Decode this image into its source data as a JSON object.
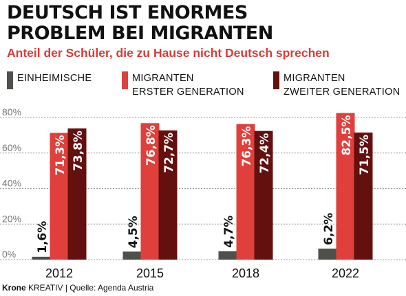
{
  "title_line1": "DEUTSCH IST ENORMES",
  "title_line2": "PROBLEM BEI MIGRANTEN",
  "subtitle": "Anteil der Schüler, die zu Hause nicht Deutsch sprechen",
  "legend": [
    {
      "line1": "EINHEIMISCHE",
      "line2": ""
    },
    {
      "line1": "MIGRANTEN",
      "line2": "ERSTER GENERATION"
    },
    {
      "line1": "MIGRANTEN",
      "line2": "ZWEITER GENERATION"
    }
  ],
  "colors": {
    "einheimische": "#4f4f4b",
    "erste": "#e0403b",
    "zweite": "#64100f",
    "grid": "#9a9a9a"
  },
  "footer": {
    "brand": "Krone",
    "brand_suffix": "KREATIV",
    "source": " | Quelle: Agenda Austria"
  },
  "chart_data": {
    "type": "bar",
    "categories": [
      "2012",
      "2015",
      "2018",
      "2022"
    ],
    "ylim": [
      0,
      80
    ],
    "yticks": [
      0,
      20,
      40,
      60,
      80
    ],
    "ytick_labels": [
      "0%",
      "20%",
      "40%",
      "60%",
      "80%"
    ],
    "grid": true,
    "series": [
      {
        "name": "EINHEIMISCHE",
        "values": [
          1.6,
          4.5,
          4.7,
          6.2
        ],
        "labels": [
          "1,6%",
          "4,5%",
          "4,7%",
          "6,2%"
        ]
      },
      {
        "name": "MIGRANTEN ERSTER GENERATION",
        "values": [
          71.3,
          76.8,
          76.3,
          82.5
        ],
        "labels": [
          "71,3%",
          "76,8%",
          "76,3%",
          "82,5%"
        ]
      },
      {
        "name": "MIGRANTEN ZWEITER GENERATION",
        "values": [
          73.8,
          72.7,
          72.4,
          71.5
        ],
        "labels": [
          "73,8%",
          "72,7%",
          "72,4%",
          "71,5%"
        ]
      }
    ]
  }
}
